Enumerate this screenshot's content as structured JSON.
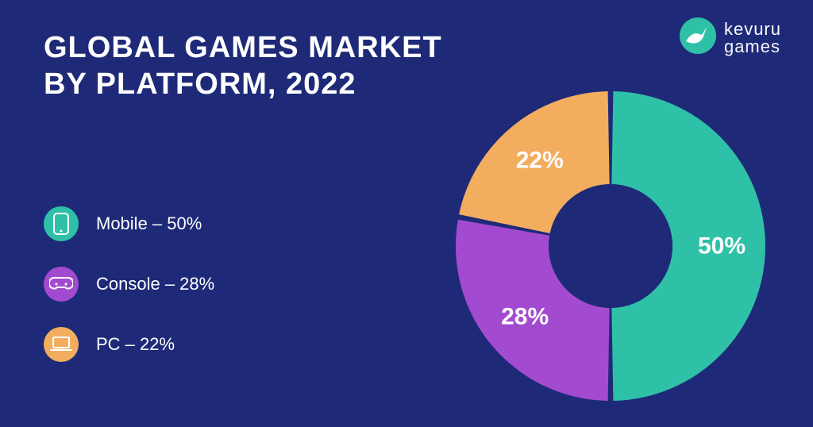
{
  "colors": {
    "background": "#1e2a78",
    "text": "#ffffff",
    "gap": "#1e2a78"
  },
  "title": {
    "line1": "GLOBAL GAMES MARKET",
    "line2": "BY PLATFORM, 2022",
    "fontsize": 38,
    "weight": 800
  },
  "logo": {
    "brand_line1": "kevuru",
    "brand_line2": "games",
    "icon_fill": "#2fc1a8",
    "icon_fg": "#ffffff"
  },
  "legend": {
    "fontsize": 22,
    "items": [
      {
        "name": "Mobile",
        "value": 50,
        "label": "Mobile – 50%",
        "color": "#2fc1a8",
        "icon": "mobile"
      },
      {
        "name": "Console",
        "value": 28,
        "label": "Console – 28%",
        "color": "#a34bd0",
        "icon": "console"
      },
      {
        "name": "PC",
        "value": 22,
        "label": "PC – 22%",
        "color": "#f2ad5e",
        "icon": "pc"
      }
    ]
  },
  "chart": {
    "type": "donut",
    "size": 390,
    "outer_radius": 195,
    "inner_radius": 78,
    "gap_deg": 2,
    "start_angle_deg": 0,
    "label_radius": 140,
    "label_fontsize": 30,
    "series": [
      {
        "name": "Mobile",
        "value": 50,
        "color": "#2fc1a8",
        "label": "50%"
      },
      {
        "name": "Console",
        "value": 28,
        "color": "#a34bd0",
        "label": "28%"
      },
      {
        "name": "PC",
        "value": 22,
        "color": "#f2ad5e",
        "label": "22%"
      }
    ]
  }
}
